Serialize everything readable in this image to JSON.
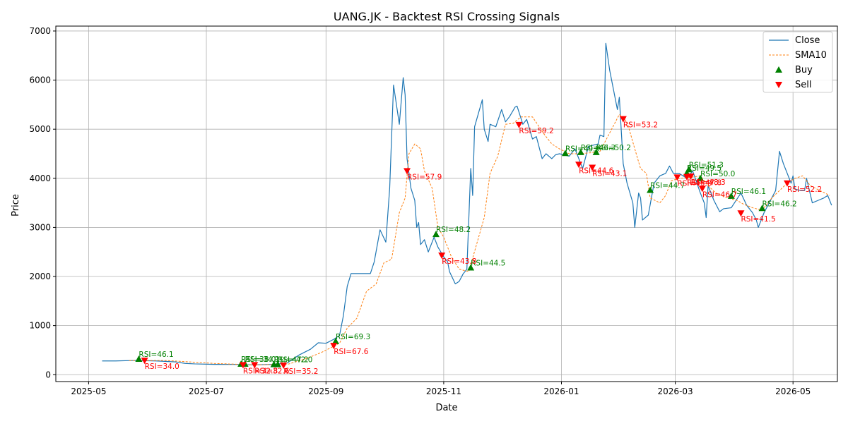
{
  "chart_data": {
    "type": "line",
    "title": "UANG.JK - Backtest RSI Crossing Signals",
    "xlabel": "Date",
    "ylabel": "Price",
    "xlim": [
      "2025-04-14",
      "2026-05-24"
    ],
    "ylim": [
      -140,
      7100
    ],
    "x_ticks": [
      {
        "date": "2025-05-01",
        "label": "2025-05"
      },
      {
        "date": "2025-07-01",
        "label": "2025-07"
      },
      {
        "date": "2025-09-01",
        "label": "2025-09"
      },
      {
        "date": "2025-11-01",
        "label": "2025-11"
      },
      {
        "date": "2026-01-01",
        "label": "2026-01"
      },
      {
        "date": "2026-03-01",
        "label": "2026-03"
      },
      {
        "date": "2026-05-01",
        "label": "2026-05"
      }
    ],
    "y_ticks": [
      0,
      1000,
      2000,
      3000,
      4000,
      5000,
      6000,
      7000
    ],
    "grid": true,
    "legend_position": "upper right",
    "colors": {
      "close": "#1f77b4",
      "sma": "#ff7f0e",
      "buy": "#008000",
      "sell": "#ff0000"
    },
    "series": [
      {
        "name": "Close",
        "style": "solid",
        "points": [
          [
            "2025-05-08",
            280
          ],
          [
            "2025-05-15",
            280
          ],
          [
            "2025-05-25",
            290
          ],
          [
            "2025-06-05",
            280
          ],
          [
            "2025-06-15",
            260
          ],
          [
            "2025-06-20",
            230
          ],
          [
            "2025-06-25",
            220
          ],
          [
            "2025-07-05",
            210
          ],
          [
            "2025-07-15",
            210
          ],
          [
            "2025-07-25",
            200
          ],
          [
            "2025-08-05",
            210
          ],
          [
            "2025-08-12",
            240
          ],
          [
            "2025-08-18",
            400
          ],
          [
            "2025-08-24",
            520
          ],
          [
            "2025-08-28",
            650
          ],
          [
            "2025-09-01",
            640
          ],
          [
            "2025-09-05",
            720
          ],
          [
            "2025-09-08",
            800
          ],
          [
            "2025-09-10",
            1200
          ],
          [
            "2025-09-12",
            1800
          ],
          [
            "2025-09-14",
            2060
          ],
          [
            "2025-09-20",
            2060
          ],
          [
            "2025-09-24",
            2060
          ],
          [
            "2025-09-26",
            2300
          ],
          [
            "2025-09-29",
            2950
          ],
          [
            "2025-10-02",
            2700
          ],
          [
            "2025-10-04",
            3800
          ],
          [
            "2025-10-06",
            5900
          ],
          [
            "2025-10-09",
            5100
          ],
          [
            "2025-10-11",
            6050
          ],
          [
            "2025-10-12",
            5700
          ],
          [
            "2025-10-13",
            4400
          ],
          [
            "2025-10-15",
            3800
          ],
          [
            "2025-10-17",
            3550
          ],
          [
            "2025-10-18",
            3000
          ],
          [
            "2025-10-19",
            3100
          ],
          [
            "2025-10-20",
            2650
          ],
          [
            "2025-10-22",
            2750
          ],
          [
            "2025-10-24",
            2500
          ],
          [
            "2025-10-27",
            2800
          ],
          [
            "2025-10-29",
            2600
          ],
          [
            "2025-11-01",
            2400
          ],
          [
            "2025-11-03",
            2300
          ],
          [
            "2025-11-04",
            2100
          ],
          [
            "2025-11-07",
            1850
          ],
          [
            "2025-11-09",
            1900
          ],
          [
            "2025-11-11",
            2050
          ],
          [
            "2025-11-13",
            2150
          ],
          [
            "2025-11-15",
            4200
          ],
          [
            "2025-11-16",
            3650
          ],
          [
            "2025-11-17",
            5050
          ],
          [
            "2025-11-21",
            5600
          ],
          [
            "2025-11-22",
            5000
          ],
          [
            "2025-11-24",
            4750
          ],
          [
            "2025-11-25",
            5100
          ],
          [
            "2025-11-28",
            5050
          ],
          [
            "2025-12-01",
            5400
          ],
          [
            "2025-12-03",
            5150
          ],
          [
            "2025-12-05",
            5250
          ],
          [
            "2025-12-08",
            5450
          ],
          [
            "2025-12-09",
            5470
          ],
          [
            "2025-12-12",
            5100
          ],
          [
            "2025-12-14",
            5200
          ],
          [
            "2025-12-17",
            4800
          ],
          [
            "2025-12-19",
            4850
          ],
          [
            "2025-12-22",
            4400
          ],
          [
            "2025-12-24",
            4500
          ],
          [
            "2025-12-27",
            4400
          ],
          [
            "2025-12-29",
            4480
          ],
          [
            "2025-12-31",
            4500
          ],
          [
            "2026-01-05",
            4450
          ],
          [
            "2026-01-08",
            4600
          ],
          [
            "2026-01-12",
            4200
          ],
          [
            "2026-01-15",
            4650
          ],
          [
            "2026-01-20",
            4700
          ],
          [
            "2026-01-21",
            4880
          ],
          [
            "2026-01-23",
            4850
          ],
          [
            "2026-01-24",
            6750
          ],
          [
            "2026-01-26",
            6200
          ],
          [
            "2026-01-30",
            5400
          ],
          [
            "2026-01-31",
            5650
          ],
          [
            "2026-02-02",
            4300
          ],
          [
            "2026-02-04",
            3900
          ],
          [
            "2026-02-07",
            3500
          ],
          [
            "2026-02-08",
            3000
          ],
          [
            "2026-02-10",
            3700
          ],
          [
            "2026-02-11",
            3600
          ],
          [
            "2026-02-12",
            3150
          ],
          [
            "2026-02-15",
            3250
          ],
          [
            "2026-02-18",
            3900
          ],
          [
            "2026-02-21",
            4050
          ],
          [
            "2026-02-24",
            4100
          ],
          [
            "2026-02-26",
            4250
          ],
          [
            "2026-02-28",
            4100
          ],
          [
            "2026-03-03",
            4100
          ],
          [
            "2026-03-07",
            4000
          ],
          [
            "2026-03-10",
            4150
          ],
          [
            "2026-03-14",
            3700
          ],
          [
            "2026-03-16",
            3500
          ],
          [
            "2026-03-17",
            3200
          ],
          [
            "2026-03-18",
            3850
          ],
          [
            "2026-03-21",
            3550
          ],
          [
            "2026-03-24",
            3320
          ],
          [
            "2026-03-26",
            3380
          ],
          [
            "2026-03-30",
            3400
          ],
          [
            "2026-04-04",
            3700
          ],
          [
            "2026-04-07",
            3450
          ],
          [
            "2026-04-10",
            3300
          ],
          [
            "2026-04-12",
            3150
          ],
          [
            "2026-04-13",
            3000
          ],
          [
            "2026-04-16",
            3300
          ],
          [
            "2026-04-18",
            3450
          ],
          [
            "2026-04-22",
            3750
          ],
          [
            "2026-04-24",
            4550
          ],
          [
            "2026-04-26",
            4300
          ],
          [
            "2026-04-28",
            4100
          ],
          [
            "2026-04-30",
            3900
          ],
          [
            "2026-05-01",
            4050
          ],
          [
            "2026-05-02",
            3780
          ],
          [
            "2026-05-05",
            3750
          ],
          [
            "2026-05-07",
            3750
          ],
          [
            "2026-05-08",
            4000
          ],
          [
            "2026-05-11",
            3500
          ],
          [
            "2026-05-14",
            3550
          ],
          [
            "2026-05-17",
            3600
          ],
          [
            "2026-05-19",
            3650
          ],
          [
            "2026-05-21",
            3450
          ]
        ]
      },
      {
        "name": "SMA10",
        "style": "dashed",
        "points": [
          [
            "2025-05-22",
            290
          ],
          [
            "2025-06-10",
            290
          ],
          [
            "2025-07-05",
            230
          ],
          [
            "2025-07-25",
            200
          ],
          [
            "2025-08-12",
            210
          ],
          [
            "2025-08-22",
            330
          ],
          [
            "2025-08-30",
            460
          ],
          [
            "2025-09-04",
            560
          ],
          [
            "2025-09-08",
            640
          ],
          [
            "2025-09-12",
            950
          ],
          [
            "2025-09-17",
            1150
          ],
          [
            "2025-09-22",
            1700
          ],
          [
            "2025-09-27",
            1850
          ],
          [
            "2025-10-01",
            2280
          ],
          [
            "2025-10-05",
            2350
          ],
          [
            "2025-10-09",
            3300
          ],
          [
            "2025-10-12",
            3600
          ],
          [
            "2025-10-14",
            4500
          ],
          [
            "2025-10-17",
            4700
          ],
          [
            "2025-10-20",
            4600
          ],
          [
            "2025-10-22",
            4150
          ],
          [
            "2025-10-26",
            3800
          ],
          [
            "2025-10-29",
            3000
          ],
          [
            "2025-11-01",
            2800
          ],
          [
            "2025-11-05",
            2400
          ],
          [
            "2025-11-09",
            2150
          ],
          [
            "2025-11-14",
            2100
          ],
          [
            "2025-11-18",
            2650
          ],
          [
            "2025-11-22",
            3200
          ],
          [
            "2025-11-25",
            4100
          ],
          [
            "2025-11-29",
            4450
          ],
          [
            "2025-12-03",
            5100
          ],
          [
            "2025-12-07",
            5120
          ],
          [
            "2025-12-11",
            5250
          ],
          [
            "2025-12-17",
            5250
          ],
          [
            "2025-12-23",
            4900
          ],
          [
            "2025-12-27",
            4700
          ],
          [
            "2025-12-31",
            4600
          ],
          [
            "2026-01-05",
            4500
          ],
          [
            "2026-01-10",
            4500
          ],
          [
            "2026-01-16",
            4520
          ],
          [
            "2026-01-21",
            4550
          ],
          [
            "2026-01-27",
            5000
          ],
          [
            "2026-01-31",
            5300
          ],
          [
            "2026-02-04",
            5150
          ],
          [
            "2026-02-08",
            4600
          ],
          [
            "2026-02-11",
            4200
          ],
          [
            "2026-02-14",
            4100
          ],
          [
            "2026-02-16",
            3600
          ],
          [
            "2026-02-21",
            3500
          ],
          [
            "2026-02-24",
            3650
          ],
          [
            "2026-02-27",
            3950
          ],
          [
            "2026-03-03",
            4000
          ],
          [
            "2026-03-09",
            4020
          ],
          [
            "2026-03-14",
            4050
          ],
          [
            "2026-03-18",
            3850
          ],
          [
            "2026-03-22",
            3700
          ],
          [
            "2026-03-28",
            3600
          ],
          [
            "2026-04-02",
            3550
          ],
          [
            "2026-04-05",
            3480
          ],
          [
            "2026-04-10",
            3400
          ],
          [
            "2026-04-15",
            3350
          ],
          [
            "2026-04-20",
            3600
          ],
          [
            "2026-04-24",
            3750
          ],
          [
            "2026-04-28",
            3900
          ],
          [
            "2026-05-02",
            4000
          ],
          [
            "2026-05-06",
            4050
          ],
          [
            "2026-05-10",
            3850
          ],
          [
            "2026-05-15",
            3750
          ],
          [
            "2026-05-20",
            3650
          ]
        ]
      }
    ],
    "buy_signals": [
      {
        "date": "2025-05-27",
        "price": 320,
        "label": "RSI=46.1"
      },
      {
        "date": "2025-07-19",
        "price": 220,
        "label": "RSI=38.0"
      },
      {
        "date": "2025-07-21",
        "price": 220,
        "label": "RSI=34.1"
      },
      {
        "date": "2025-08-05",
        "price": 210,
        "label": "RSI=47.2"
      },
      {
        "date": "2025-08-07",
        "price": 210,
        "label": "RSI=42.0"
      },
      {
        "date": "2025-09-06",
        "price": 680,
        "label": "RSI=69.3"
      },
      {
        "date": "2025-10-28",
        "price": 2860,
        "label": "RSI=48.2"
      },
      {
        "date": "2025-11-15",
        "price": 2180,
        "label": "RSI=44.5"
      },
      {
        "date": "2026-01-03",
        "price": 4510,
        "label": "RSI=49.9"
      },
      {
        "date": "2026-01-11",
        "price": 4530,
        "label": "RSI=46.3"
      },
      {
        "date": "2026-01-19",
        "price": 4530,
        "label": "RSI=50.2"
      },
      {
        "date": "2026-02-16",
        "price": 3760,
        "label": "RSI=44.7"
      },
      {
        "date": "2026-03-07",
        "price": 4110,
        "label": "RSI=49.5"
      },
      {
        "date": "2026-03-08",
        "price": 4180,
        "label": "RSI=51.3"
      },
      {
        "date": "2026-03-14",
        "price": 4000,
        "label": "RSI=50.0"
      },
      {
        "date": "2026-03-30",
        "price": 3640,
        "label": "RSI=46.1"
      },
      {
        "date": "2026-04-15",
        "price": 3390,
        "label": "RSI=46.2"
      }
    ],
    "sell_signals": [
      {
        "date": "2025-05-30",
        "price": 290,
        "label": "RSI=34.0"
      },
      {
        "date": "2025-07-20",
        "price": 200,
        "label": "RSI=32.8"
      },
      {
        "date": "2025-07-26",
        "price": 200,
        "label": "RSI=32.6"
      },
      {
        "date": "2025-08-10",
        "price": 190,
        "label": "RSI=35.2"
      },
      {
        "date": "2025-09-05",
        "price": 590,
        "label": "RSI=67.6"
      },
      {
        "date": "2025-10-13",
        "price": 4150,
        "label": "RSI=57.9"
      },
      {
        "date": "2025-10-31",
        "price": 2430,
        "label": "RSI=43.8"
      },
      {
        "date": "2025-12-10",
        "price": 5090,
        "label": "RSI=59.2"
      },
      {
        "date": "2026-01-10",
        "price": 4280,
        "label": "RSI=44.6"
      },
      {
        "date": "2026-01-17",
        "price": 4220,
        "label": "RSI=43.1"
      },
      {
        "date": "2026-02-02",
        "price": 5210,
        "label": "RSI=53.2"
      },
      {
        "date": "2026-03-02",
        "price": 4020,
        "label": "RSI=45.9"
      },
      {
        "date": "2026-03-07",
        "price": 4030,
        "label": "RSI=47.8"
      },
      {
        "date": "2026-03-09",
        "price": 4040,
        "label": "RSI=48.3"
      },
      {
        "date": "2026-03-15",
        "price": 3790,
        "label": "RSI=46.7"
      },
      {
        "date": "2026-04-04",
        "price": 3290,
        "label": "RSI=41.5"
      },
      {
        "date": "2026-04-28",
        "price": 3900,
        "label": "RSI=52.2"
      }
    ],
    "legend": [
      {
        "key": "close",
        "label": "Close",
        "kind": "line"
      },
      {
        "key": "sma",
        "label": "SMA10",
        "kind": "dashed"
      },
      {
        "key": "buy",
        "label": "Buy",
        "kind": "up-triangle"
      },
      {
        "key": "sell",
        "label": "Sell",
        "kind": "down-triangle"
      }
    ]
  }
}
